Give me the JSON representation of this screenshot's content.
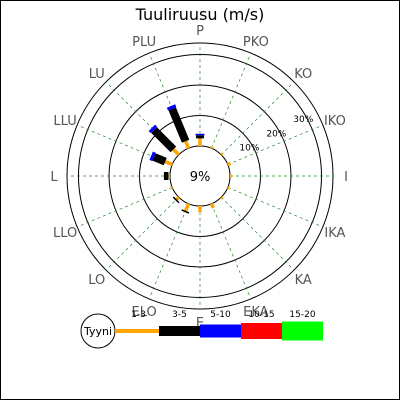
{
  "chart_data": {
    "type": "windrose",
    "title": "Tuuliruusu (m/s)",
    "calm_percent_label": "9%",
    "calm_label": "Tyyni",
    "calm_percent": 9,
    "directions": [
      "P",
      "PKO",
      "KO",
      "IKO",
      "I",
      "IKA",
      "KA",
      "EKA",
      "E",
      "ELO",
      "LO",
      "LLO",
      "L",
      "LLU",
      "LU",
      "PLU"
    ],
    "ring_labels": [
      "10%",
      "20%",
      "30%"
    ],
    "rings_percent": [
      10,
      20,
      30
    ],
    "speed_classes": [
      {
        "name": "1-3",
        "color": "#ffa500"
      },
      {
        "name": "3-5",
        "color": "#000000"
      },
      {
        "name": "5-10",
        "color": "#0000ff"
      },
      {
        "name": "10-15",
        "color": "#ff0000"
      },
      {
        "name": "15-20",
        "color": "#00ff00"
      }
    ],
    "series": [
      {
        "name": "1-3",
        "values": [
          2.5,
          0.5,
          0.5,
          1.0,
          0.5,
          0.5,
          0.5,
          1.5,
          2.0,
          2.5,
          1.0,
          0.5,
          0.5,
          2.5,
          2.5,
          2.5
        ]
      },
      {
        "name": "3-5",
        "values": [
          1.0,
          0.0,
          0.0,
          0.0,
          0.0,
          0.0,
          0.0,
          0.0,
          0.0,
          0.5,
          0.5,
          0.0,
          1.5,
          4.0,
          9.0,
          11.5
        ]
      },
      {
        "name": "5-10",
        "values": [
          0.5,
          0.0,
          0.0,
          0.0,
          0.0,
          0.0,
          0.0,
          0.0,
          0.0,
          0.0,
          0.0,
          0.0,
          0.0,
          1.0,
          1.0,
          1.0
        ]
      },
      {
        "name": "10-15",
        "values": [
          0,
          0,
          0,
          0,
          0,
          0,
          0,
          0,
          0,
          0,
          0,
          0,
          0,
          0,
          0,
          0
        ]
      },
      {
        "name": "15-20",
        "values": [
          0,
          0,
          0,
          0,
          0,
          0,
          0,
          0,
          0,
          0,
          0,
          0,
          0,
          0,
          0,
          0
        ]
      }
    ]
  }
}
